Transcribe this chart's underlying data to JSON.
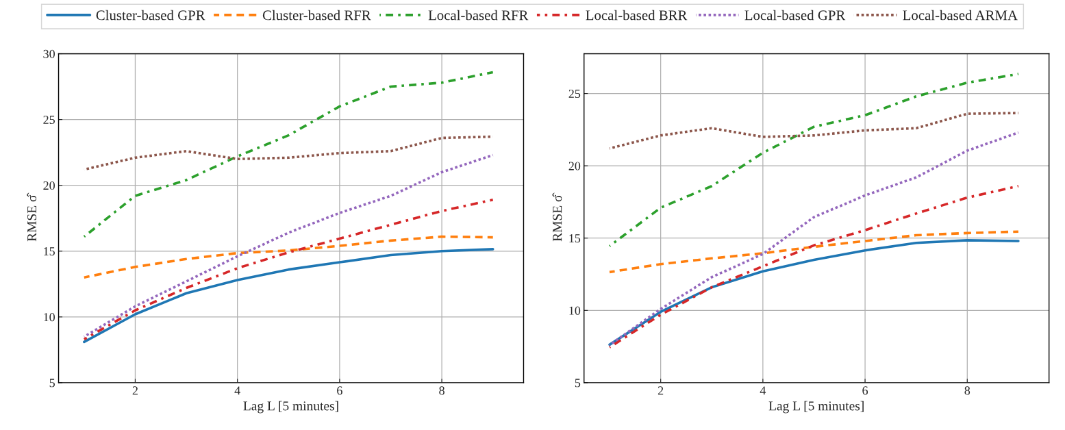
{
  "chart_data": [
    {
      "type": "line",
      "xlabel": "Lag L [5 minutes]",
      "ylabel": "RMSE σ̂",
      "x": [
        1,
        2,
        3,
        4,
        5,
        6,
        7,
        8,
        9
      ],
      "xlim": [
        0.5,
        9.6
      ],
      "ylim": [
        5,
        30
      ],
      "xticks": [
        2,
        4,
        6,
        8
      ],
      "yticks": [
        5,
        10,
        15,
        20,
        25,
        30
      ],
      "grid": true,
      "legend": "top",
      "series": [
        {
          "name": "Cluster-based GPR",
          "color": "#1f77b4",
          "line_style": "solid",
          "values": [
            8.1,
            10.2,
            11.8,
            12.8,
            13.6,
            14.15,
            14.7,
            15.0,
            15.15
          ]
        },
        {
          "name": "Cluster-based RFR",
          "color": "#ff7f0e",
          "line_style": "dashed",
          "values": [
            13.0,
            13.8,
            14.4,
            14.85,
            15.05,
            15.4,
            15.8,
            16.1,
            16.05
          ]
        },
        {
          "name": "Local-based RFR",
          "color": "#2ca02c",
          "line_style": "dashdot",
          "values": [
            16.1,
            19.2,
            20.4,
            22.2,
            23.8,
            26.0,
            27.5,
            27.8,
            28.6
          ]
        },
        {
          "name": "Local-based BRR",
          "color": "#d62728",
          "line_style": "dashdot",
          "values": [
            8.3,
            10.5,
            12.2,
            13.7,
            14.9,
            15.95,
            17.0,
            18.05,
            18.9
          ]
        },
        {
          "name": "Local-based GPR",
          "color": "#9467bd",
          "line_style": "dotted",
          "values": [
            8.5,
            10.8,
            12.7,
            14.6,
            16.4,
            17.9,
            19.2,
            21.0,
            22.3
          ]
        },
        {
          "name": "Local-based ARMA",
          "color": "#8c564b",
          "line_style": "dotted",
          "values": [
            21.2,
            22.1,
            22.6,
            22.0,
            22.1,
            22.45,
            22.6,
            23.6,
            23.7
          ]
        }
      ]
    },
    {
      "type": "line",
      "xlabel": "Lag L [5 minutes]",
      "ylabel": "RMSE σ̂",
      "x": [
        1,
        2,
        3,
        4,
        5,
        6,
        7,
        8,
        9
      ],
      "xlim": [
        0.5,
        9.6
      ],
      "ylim": [
        5,
        27.75
      ],
      "xticks": [
        2,
        4,
        6,
        8
      ],
      "yticks": [
        5,
        10,
        15,
        20,
        25
      ],
      "grid": true,
      "series": [
        {
          "name": "Cluster-based GPR",
          "color": "#1f77b4",
          "line_style": "solid",
          "values": [
            7.63,
            9.9,
            11.6,
            12.7,
            13.5,
            14.15,
            14.67,
            14.85,
            14.8
          ]
        },
        {
          "name": "Cluster-based RFR",
          "color": "#ff7f0e",
          "line_style": "dashed",
          "values": [
            12.65,
            13.2,
            13.6,
            13.95,
            14.4,
            14.8,
            15.2,
            15.35,
            15.45
          ]
        },
        {
          "name": "Local-based RFR",
          "color": "#2ca02c",
          "line_style": "dashdot",
          "values": [
            14.45,
            17.1,
            18.6,
            20.9,
            22.7,
            23.5,
            24.8,
            25.75,
            26.35
          ]
        },
        {
          "name": "Local-based BRR",
          "color": "#d62728",
          "line_style": "dashdot",
          "values": [
            7.45,
            9.7,
            11.6,
            13.05,
            14.5,
            15.55,
            16.7,
            17.8,
            18.6
          ]
        },
        {
          "name": "Local-based GPR",
          "color": "#9467bd",
          "line_style": "dotted",
          "values": [
            7.6,
            10.1,
            12.3,
            13.9,
            16.45,
            17.95,
            19.2,
            21.05,
            22.3
          ]
        },
        {
          "name": "Local-based ARMA",
          "color": "#8c564b",
          "line_style": "dotted",
          "values": [
            21.2,
            22.1,
            22.6,
            22.0,
            22.1,
            22.45,
            22.6,
            23.6,
            23.65
          ]
        }
      ]
    }
  ]
}
